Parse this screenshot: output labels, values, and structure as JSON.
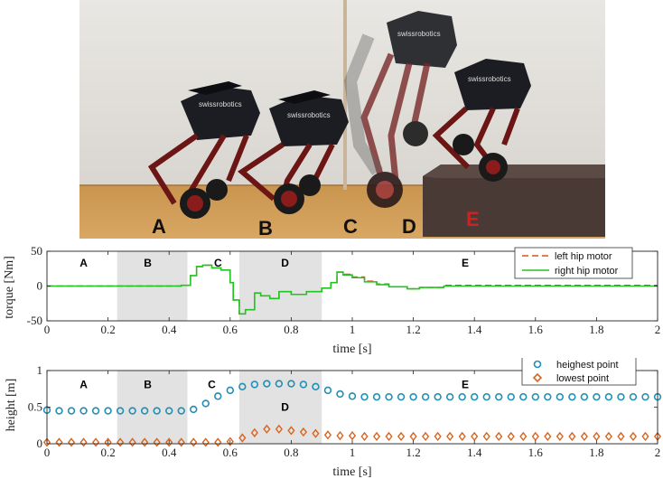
{
  "photo": {
    "labels": [
      "A",
      "B",
      "C",
      "D",
      "E"
    ],
    "brand": "swissrobotics"
  },
  "colors": {
    "left_hip": "#d95319",
    "right_hip": "#22c322",
    "highest": "#1f8fb5",
    "lowest": "#d9641f",
    "shade": "#e2e2e2"
  },
  "chart_data": [
    {
      "type": "line",
      "xlabel": "time [s]",
      "ylabel": "torque [Nm]",
      "xlim": [
        0,
        2
      ],
      "ylim": [
        -50,
        50
      ],
      "xticks": [
        "0",
        "0.2",
        "0.4",
        "0.6",
        "0.8",
        "1",
        "1.2",
        "1.4",
        "1.6",
        "1.8",
        "2"
      ],
      "yticks": [
        "50",
        "0",
        "-50"
      ],
      "shaded_intervals": [
        [
          0.23,
          0.46
        ],
        [
          0.63,
          0.9
        ]
      ],
      "phase_labels": [
        {
          "text": "A",
          "x": 0.12
        },
        {
          "text": "B",
          "x": 0.33
        },
        {
          "text": "C",
          "x": 0.56
        },
        {
          "text": "D",
          "x": 0.78
        },
        {
          "text": "E",
          "x": 1.37
        }
      ],
      "legend_position": "top-right",
      "x": [
        0,
        0.2,
        0.44,
        0.47,
        0.49,
        0.51,
        0.54,
        0.57,
        0.6,
        0.61,
        0.63,
        0.65,
        0.68,
        0.7,
        0.73,
        0.76,
        0.8,
        0.85,
        0.9,
        0.93,
        0.95,
        0.97,
        1.0,
        1.04,
        1.08,
        1.12,
        1.18,
        1.22,
        1.3,
        1.5,
        2.0
      ],
      "series": [
        {
          "name": "left hip motor",
          "values": [
            0,
            0,
            1,
            15,
            28,
            30,
            26,
            23,
            5,
            -20,
            -40,
            -34,
            -10,
            -14,
            -18,
            -8,
            -12,
            -8,
            -3,
            5,
            20,
            17,
            13,
            7,
            3,
            -1,
            -4,
            -2,
            1,
            1,
            1
          ]
        },
        {
          "name": "right hip motor",
          "values": [
            0,
            0,
            1,
            15,
            28,
            30,
            26,
            23,
            5,
            -20,
            -40,
            -34,
            -10,
            -14,
            -18,
            -8,
            -12,
            -8,
            -3,
            5,
            20,
            16,
            12,
            6,
            2,
            -1,
            -4,
            -2,
            0,
            0,
            0
          ]
        }
      ]
    },
    {
      "type": "scatter",
      "xlabel": "time [s]",
      "ylabel": "height [m]",
      "xlim": [
        0,
        2
      ],
      "ylim": [
        0,
        1
      ],
      "xticks": [
        "0",
        "0.2",
        "0.4",
        "0.6",
        "0.8",
        "1",
        "1.2",
        "1.4",
        "1.6",
        "1.8",
        "2"
      ],
      "yticks": [
        "1",
        "0.5",
        "0"
      ],
      "shaded_intervals": [
        [
          0.23,
          0.46
        ],
        [
          0.63,
          0.9
        ]
      ],
      "phase_labels": [
        {
          "text": "A",
          "x": 0.12,
          "y": 0.81
        },
        {
          "text": "B",
          "x": 0.33,
          "y": 0.81
        },
        {
          "text": "C",
          "x": 0.54,
          "y": 0.81
        },
        {
          "text": "D",
          "x": 0.78,
          "y": 0.5
        },
        {
          "text": "E",
          "x": 1.37,
          "y": 0.81
        }
      ],
      "legend_position": "top-right",
      "series": [
        {
          "name": "heighest point",
          "marker": "circle",
          "x": [
            0,
            0.04,
            0.08,
            0.12,
            0.16,
            0.2,
            0.24,
            0.28,
            0.32,
            0.36,
            0.4,
            0.44,
            0.48,
            0.52,
            0.56,
            0.6,
            0.64,
            0.68,
            0.72,
            0.76,
            0.8,
            0.84,
            0.88,
            0.92,
            0.96,
            1.0,
            1.04,
            1.08,
            1.12,
            1.16,
            1.2,
            1.24,
            1.28,
            1.32,
            1.36,
            1.4,
            1.44,
            1.48,
            1.52,
            1.56,
            1.6,
            1.64,
            1.68,
            1.72,
            1.76,
            1.8,
            1.84,
            1.88,
            1.92,
            1.96,
            2.0
          ],
          "values": [
            0.46,
            0.45,
            0.45,
            0.45,
            0.45,
            0.45,
            0.45,
            0.45,
            0.45,
            0.45,
            0.45,
            0.45,
            0.47,
            0.55,
            0.65,
            0.73,
            0.78,
            0.81,
            0.82,
            0.82,
            0.82,
            0.81,
            0.78,
            0.73,
            0.68,
            0.65,
            0.64,
            0.64,
            0.64,
            0.64,
            0.64,
            0.64,
            0.64,
            0.64,
            0.64,
            0.64,
            0.64,
            0.64,
            0.64,
            0.64,
            0.64,
            0.64,
            0.64,
            0.64,
            0.64,
            0.64,
            0.64,
            0.64,
            0.64,
            0.64,
            0.64
          ]
        },
        {
          "name": "lowest point",
          "marker": "diamond",
          "x": [
            0,
            0.04,
            0.08,
            0.12,
            0.16,
            0.2,
            0.24,
            0.28,
            0.32,
            0.36,
            0.4,
            0.44,
            0.48,
            0.52,
            0.56,
            0.6,
            0.64,
            0.68,
            0.72,
            0.76,
            0.8,
            0.84,
            0.88,
            0.92,
            0.96,
            1.0,
            1.04,
            1.08,
            1.12,
            1.16,
            1.2,
            1.24,
            1.28,
            1.32,
            1.36,
            1.4,
            1.44,
            1.48,
            1.52,
            1.56,
            1.6,
            1.64,
            1.68,
            1.72,
            1.76,
            1.8,
            1.84,
            1.88,
            1.92,
            1.96,
            2.0
          ],
          "values": [
            0.02,
            0.02,
            0.02,
            0.02,
            0.02,
            0.02,
            0.02,
            0.02,
            0.02,
            0.02,
            0.02,
            0.02,
            0.02,
            0.02,
            0.02,
            0.03,
            0.08,
            0.15,
            0.2,
            0.2,
            0.18,
            0.16,
            0.14,
            0.12,
            0.11,
            0.11,
            0.1,
            0.1,
            0.1,
            0.1,
            0.1,
            0.1,
            0.1,
            0.1,
            0.1,
            0.1,
            0.1,
            0.1,
            0.1,
            0.1,
            0.1,
            0.1,
            0.1,
            0.1,
            0.1,
            0.1,
            0.1,
            0.1,
            0.1,
            0.1,
            0.1
          ]
        }
      ]
    }
  ]
}
